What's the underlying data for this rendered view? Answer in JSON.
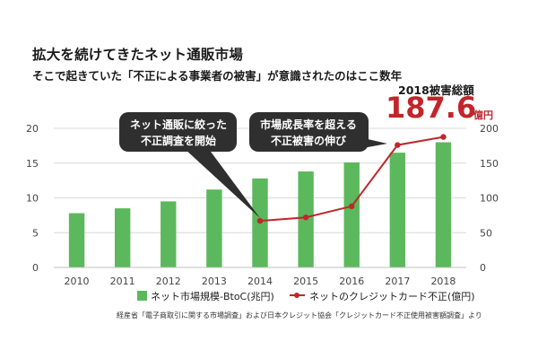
{
  "headline": {
    "title": "拡大を続けてきたネット通販市場",
    "subtitle": "そこで起きていた「不正による事業者の被害」が意識されたのはここ数年",
    "total_label": "2018被害総額",
    "total_value": "187.6",
    "total_unit": "億円"
  },
  "callouts": {
    "left": [
      "ネット通販に絞った",
      "不正調査を開始"
    ],
    "right": [
      "市場成長率を超える",
      "不正被害の伸び"
    ]
  },
  "source": "経産省「電子商取引に関する市場調査」および日本クレジット協会「クレジットカード不正使用被害額調査」より",
  "colors": {
    "bar": "#5cb85c",
    "line": "#c0262b",
    "callout": "#2f2f2f",
    "accent": "#c0262b"
  },
  "chart_data": {
    "type": "bar",
    "categories": [
      "2010",
      "2011",
      "2012",
      "2013",
      "2014",
      "2015",
      "2016",
      "2017",
      "2018"
    ],
    "series": [
      {
        "name": "ネット市場規模-BtoC(兆円)",
        "type": "bar",
        "axis": "left",
        "values": [
          7.8,
          8.5,
          9.5,
          11.2,
          12.8,
          13.8,
          15.1,
          16.5,
          18.0
        ]
      },
      {
        "name": "ネットのクレジットカード不正(億円)",
        "type": "line",
        "axis": "right",
        "x": [
          "2014",
          "2015",
          "2016",
          "2017",
          "2018"
        ],
        "values": [
          67,
          72,
          88,
          176,
          187.6
        ]
      }
    ],
    "ylim_left": [
      0,
      20
    ],
    "yticks_left": [
      "0",
      "5",
      "10",
      "15",
      "20"
    ],
    "ylim_right": [
      0,
      200
    ],
    "yticks_right": [
      "0",
      "50",
      "100",
      "150",
      "200"
    ],
    "grid": true,
    "legend_position": "bottom"
  }
}
